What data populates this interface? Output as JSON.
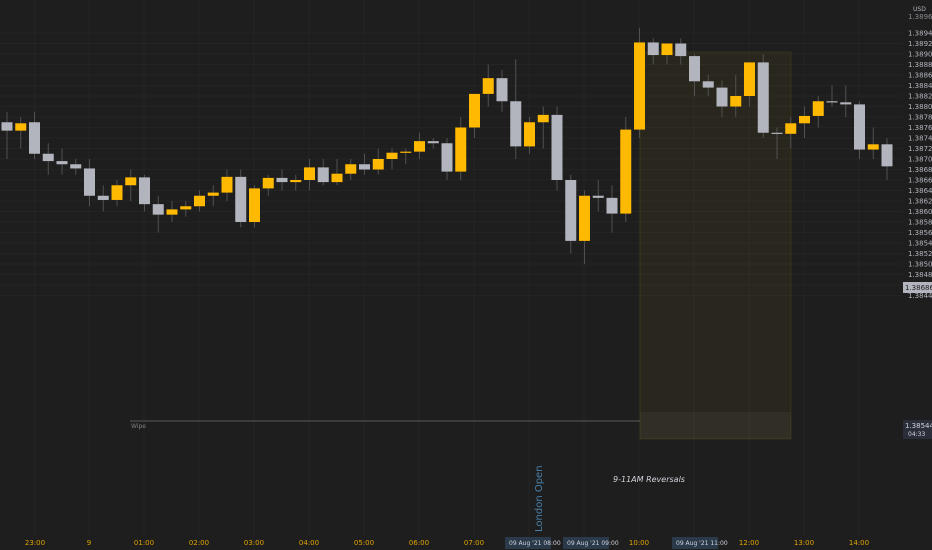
{
  "chart_data": {
    "type": "candlestick",
    "currency": "USD",
    "y_ticks": [
      "1.38940",
      "1.38920",
      "1.38900",
      "1.38880",
      "1.38860",
      "1.38840",
      "1.38820",
      "1.38800",
      "1.38780",
      "1.38760",
      "1.38740",
      "1.38720",
      "1.38700",
      "1.38680",
      "1.38660",
      "1.38640",
      "1.38620",
      "1.38600",
      "1.38580",
      "1.38560",
      "1.38540",
      "1.38520",
      "1.38500",
      "1.38480",
      "1.38460",
      "1.38440"
    ],
    "y_top_partial": "1.38960",
    "ylim": [
      1.3843,
      1.3897
    ],
    "x_labels": [
      "23:00",
      "9",
      "01:00",
      "02:00",
      "03:00",
      "04:00",
      "05:00",
      "06:00",
      "07:00",
      "08:00",
      "09:00",
      "10:00",
      "11:00",
      "12:00",
      "13:00",
      "14:00"
    ],
    "x_highlight_labels": [
      "09 Aug '21 08:00",
      "09 Aug '21 09:00",
      "09 Aug '21 11:00"
    ],
    "price_labels": {
      "upper": "1.38686",
      "lower": "1.38544",
      "countdown": "04:33"
    },
    "annotations": {
      "wipe": "Wipe",
      "london_open": "London Open",
      "reversals": "9-11AM Reversals"
    },
    "candles": [
      [
        1.3877,
        1.3879,
        1.387,
        1.38754
      ],
      [
        1.38754,
        1.3878,
        1.3872,
        1.38768
      ],
      [
        1.3877,
        1.3879,
        1.387,
        1.3871
      ],
      [
        1.3871,
        1.3873,
        1.3867,
        1.38696
      ],
      [
        1.38696,
        1.3872,
        1.3867,
        1.3869
      ],
      [
        1.3869,
        1.387,
        1.3867,
        1.38682
      ],
      [
        1.38682,
        1.387,
        1.3861,
        1.3863
      ],
      [
        1.3863,
        1.3865,
        1.386,
        1.38622
      ],
      [
        1.38622,
        1.3866,
        1.3861,
        1.3865
      ],
      [
        1.3865,
        1.3868,
        1.3862,
        1.38665
      ],
      [
        1.38665,
        1.3867,
        1.386,
        1.38614
      ],
      [
        1.38614,
        1.3863,
        1.3856,
        1.38594
      ],
      [
        1.38594,
        1.3862,
        1.3858,
        1.38604
      ],
      [
        1.38604,
        1.3862,
        1.3859,
        1.3861
      ],
      [
        1.3861,
        1.3864,
        1.386,
        1.3863
      ],
      [
        1.3863,
        1.3865,
        1.3861,
        1.38636
      ],
      [
        1.38636,
        1.3868,
        1.3862,
        1.38666
      ],
      [
        1.38666,
        1.3868,
        1.3857,
        1.3858
      ],
      [
        1.3858,
        1.3865,
        1.3857,
        1.38644
      ],
      [
        1.38644,
        1.3867,
        1.3863,
        1.38664
      ],
      [
        1.38664,
        1.3868,
        1.3864,
        1.38656
      ],
      [
        1.38656,
        1.3867,
        1.3864,
        1.3866
      ],
      [
        1.3866,
        1.387,
        1.3864,
        1.38684
      ],
      [
        1.38684,
        1.387,
        1.3865,
        1.38656
      ],
      [
        1.38656,
        1.387,
        1.3865,
        1.38672
      ],
      [
        1.38672,
        1.387,
        1.3866,
        1.3869
      ],
      [
        1.3869,
        1.3871,
        1.3867,
        1.3868
      ],
      [
        1.3868,
        1.3872,
        1.3867,
        1.387
      ],
      [
        1.387,
        1.3872,
        1.3868,
        1.38712
      ],
      [
        1.38712,
        1.3872,
        1.3869,
        1.38714
      ],
      [
        1.38714,
        1.3875,
        1.387,
        1.38734
      ],
      [
        1.38734,
        1.3874,
        1.3872,
        1.3873
      ],
      [
        1.3873,
        1.3874,
        1.3866,
        1.38676
      ],
      [
        1.38676,
        1.3878,
        1.3866,
        1.3876
      ],
      [
        1.3876,
        1.3882,
        1.3874,
        1.38824
      ],
      [
        1.38824,
        1.3888,
        1.388,
        1.38854
      ],
      [
        1.38854,
        1.3887,
        1.3879,
        1.3881
      ],
      [
        1.3881,
        1.3889,
        1.387,
        1.38724
      ],
      [
        1.38724,
        1.3878,
        1.3871,
        1.3877
      ],
      [
        1.3877,
        1.388,
        1.3872,
        1.38784
      ],
      [
        1.38784,
        1.388,
        1.3864,
        1.3866
      ],
      [
        1.3866,
        1.3867,
        1.3852,
        1.38544
      ],
      [
        1.38544,
        1.3864,
        1.385,
        1.3863
      ],
      [
        1.3863,
        1.3866,
        1.386,
        1.38626
      ],
      [
        1.38626,
        1.3865,
        1.3856,
        1.38596
      ],
      [
        1.38596,
        1.3878,
        1.3858,
        1.38756
      ],
      [
        1.38756,
        1.3895,
        1.3874,
        1.38922
      ],
      [
        1.38922,
        1.3893,
        1.3888,
        1.38898
      ],
      [
        1.38898,
        1.3892,
        1.3888,
        1.3892
      ],
      [
        1.3892,
        1.3893,
        1.3888,
        1.38896
      ],
      [
        1.38896,
        1.389,
        1.3882,
        1.38848
      ],
      [
        1.38848,
        1.3886,
        1.3882,
        1.38836
      ],
      [
        1.38836,
        1.3885,
        1.3878,
        1.388
      ],
      [
        1.388,
        1.3886,
        1.3878,
        1.3882
      ],
      [
        1.3882,
        1.3888,
        1.388,
        1.38884
      ],
      [
        1.38884,
        1.389,
        1.3874,
        1.3875
      ],
      [
        1.3875,
        1.3876,
        1.387,
        1.38748
      ],
      [
        1.38748,
        1.3878,
        1.3872,
        1.38768
      ],
      [
        1.38768,
        1.388,
        1.3874,
        1.38782
      ],
      [
        1.38782,
        1.3882,
        1.3876,
        1.3881
      ],
      [
        1.3881,
        1.3884,
        1.388,
        1.38808
      ],
      [
        1.38808,
        1.3884,
        1.3878,
        1.38804
      ],
      [
        1.38804,
        1.3881,
        1.387,
        1.38718
      ],
      [
        1.38718,
        1.3876,
        1.387,
        1.38728
      ],
      [
        1.38728,
        1.3874,
        1.3866,
        1.38686
      ]
    ]
  },
  "colors": {
    "background": "#1e1e1e",
    "up": "#ffb900",
    "down": "#b2b5be",
    "grid": "#2a2a2a",
    "highlight_box": "#f5c518",
    "axis_text": "#b2b5be",
    "time_text": "#e0a400",
    "current_price_bg": "#b2b5be"
  }
}
